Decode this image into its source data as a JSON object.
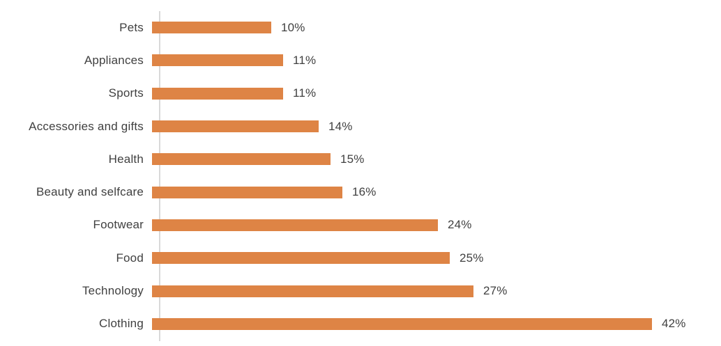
{
  "chart_data": {
    "type": "bar",
    "orientation": "horizontal",
    "title": "",
    "xlabel": "",
    "ylabel": "",
    "grid": false,
    "legend": null,
    "xlim": [
      0,
      45.7
    ],
    "categories": [
      "Pets",
      "Appliances",
      "Sports",
      "Accessories and gifts",
      "Health",
      "Beauty and selfcare",
      "Footwear",
      "Food",
      "Technology",
      "Clothing"
    ],
    "values": [
      10,
      11,
      11,
      14,
      15,
      16,
      24,
      25,
      27,
      42
    ],
    "value_labels": [
      "10%",
      "11%",
      "11%",
      "14%",
      "15%",
      "16%",
      "24%",
      "25%",
      "27%",
      "42%"
    ],
    "colors": {
      "bar": "#de8445",
      "text": "#404040",
      "axis_line": "#d9d9d9",
      "background": "#ffffff"
    }
  }
}
